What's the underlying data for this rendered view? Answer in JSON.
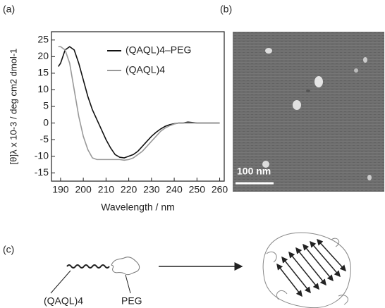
{
  "panel_labels": [
    "(a)",
    "(b)",
    "(c)"
  ],
  "chart_data": {
    "type": "line",
    "x_label": "Wavelength / nm",
    "y_label": "[θ]λ x 10-3 / deg cm2 dmol-1",
    "x": [
      189,
      190,
      192,
      194,
      196,
      198,
      200,
      202,
      204,
      206,
      208,
      210,
      212,
      214,
      216,
      218,
      220,
      222,
      224,
      226,
      228,
      230,
      232,
      234,
      236,
      238,
      240,
      242,
      244,
      246,
      250,
      255,
      260
    ],
    "series": [
      {
        "name": "(QAQL)4–PEG",
        "color": "#111111",
        "values": [
          17,
          18,
          22,
          23,
          22,
          18,
          13,
          8,
          4,
          1,
          -2,
          -5,
          -7.5,
          -9.5,
          -10.3,
          -10.5,
          -10,
          -9.5,
          -8.5,
          -7,
          -5.5,
          -4,
          -2.8,
          -1.8,
          -1,
          -0.5,
          -0.2,
          0,
          0,
          0.3,
          0,
          0,
          0
        ]
      },
      {
        "name": "(QAQL)4",
        "color": "#999999",
        "values": [
          23,
          23,
          22,
          18,
          10,
          2,
          -4,
          -8,
          -10.5,
          -11,
          -11,
          -11,
          -11,
          -11,
          -11,
          -11.2,
          -11,
          -10.5,
          -9.5,
          -8.5,
          -7,
          -5.5,
          -4,
          -2.5,
          -1.5,
          -0.8,
          -0.3,
          0,
          0,
          0,
          0,
          0,
          0
        ]
      }
    ],
    "xlim": [
      186,
      262
    ],
    "ylim": [
      -17.5,
      27.5
    ],
    "xticks": [
      190,
      200,
      210,
      220,
      230,
      240,
      250,
      260
    ],
    "yticks": [
      -15,
      -10,
      -5,
      0,
      5,
      10,
      15,
      20,
      25
    ]
  },
  "afm": {
    "scale_bar": "100 nm"
  },
  "diagram": {
    "peptide_label": "(QAQL)4",
    "peg_label": "PEG"
  }
}
